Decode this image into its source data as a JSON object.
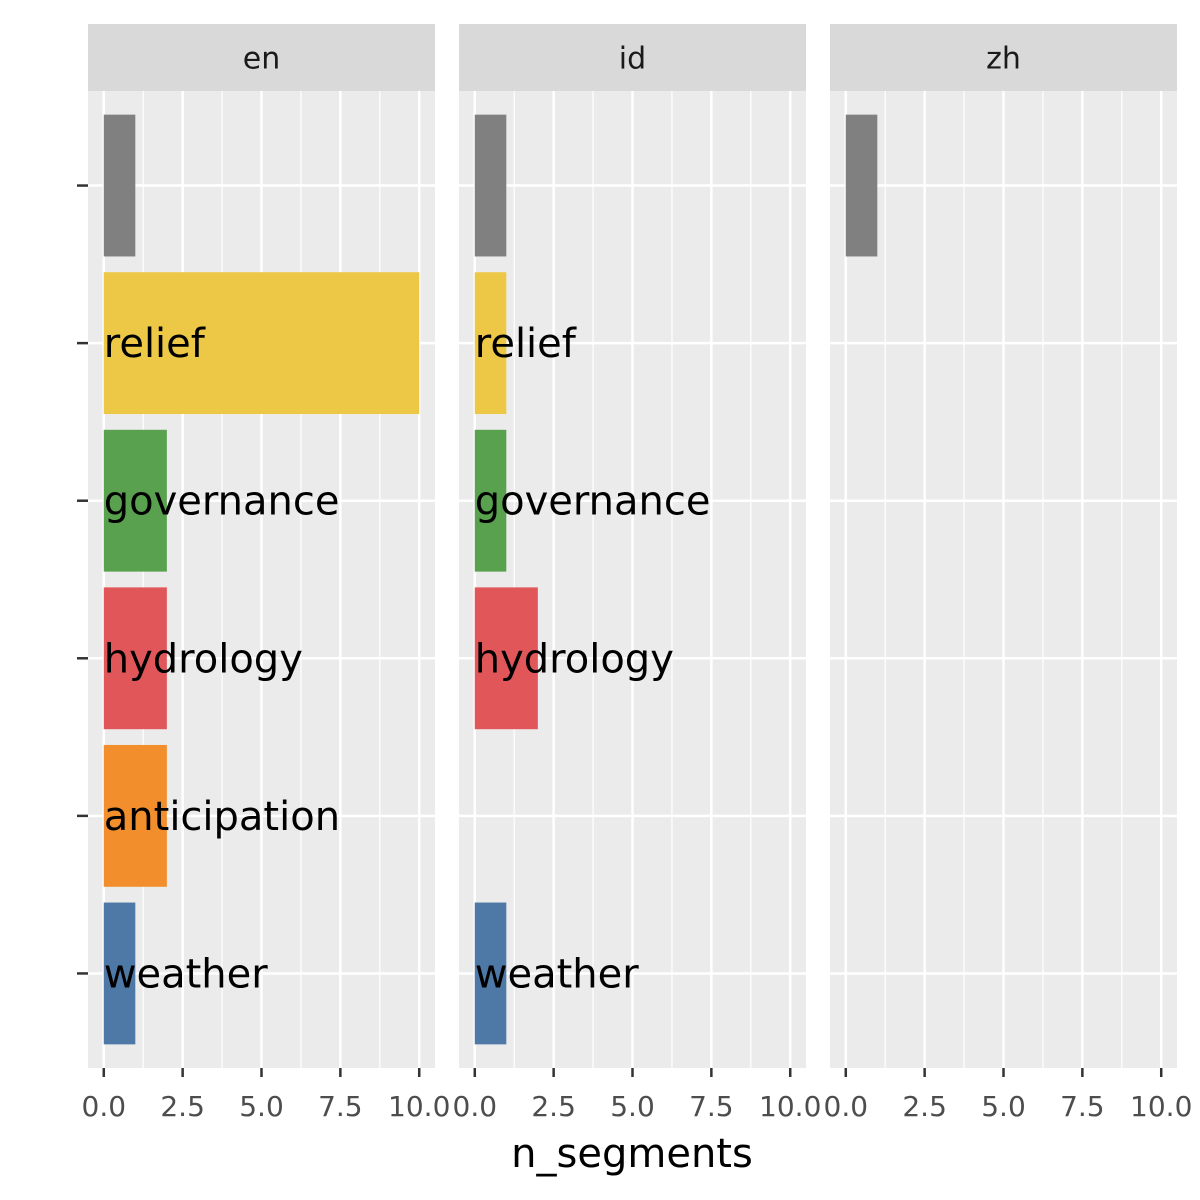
{
  "chart_data": {
    "type": "bar",
    "orientation": "horizontal",
    "facets": [
      "en",
      "id",
      "zh"
    ],
    "categories": [
      "",
      "relief",
      "governance",
      "hydrology",
      "anticipation",
      "weather"
    ],
    "category_colors": [
      "#808080",
      "#ECC846",
      "#59A14F",
      "#E15759",
      "#F28E2B",
      "#4E79A7"
    ],
    "series": [
      {
        "facet": "en",
        "values": [
          1,
          10,
          2,
          2,
          2,
          1
        ]
      },
      {
        "facet": "id",
        "values": [
          1,
          1,
          1,
          2,
          0,
          1
        ]
      },
      {
        "facet": "zh",
        "values": [
          1,
          0,
          0,
          0,
          0,
          0
        ]
      }
    ],
    "xlabel": "n_segments",
    "ylabel": "",
    "xlim": [
      -0.5,
      10.5
    ],
    "xticks": [
      0,
      2.5,
      5,
      7.5,
      10
    ],
    "xtick_labels": [
      "0.0",
      "2.5",
      "5.0",
      "7.5",
      "10.0"
    ],
    "grid": true,
    "panel_background": "#EBEBEB",
    "strip_background": "#D9D9D9"
  }
}
